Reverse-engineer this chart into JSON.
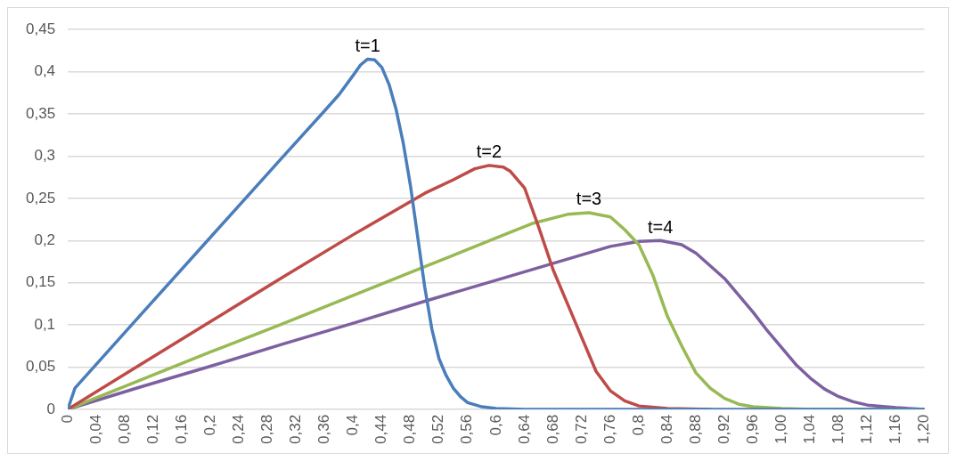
{
  "chart_data": {
    "type": "line",
    "series": [
      {
        "color": "#4a7ebb",
        "x": [
          0,
          0.01,
          0.1,
          0.2,
          0.3,
          0.36,
          0.38,
          0.4,
          0.41,
          0.42,
          0.43,
          0.44,
          0.45,
          0.46,
          0.47,
          0.48,
          0.49,
          0.5,
          0.51,
          0.52,
          0.53,
          0.54,
          0.55,
          0.56,
          0.58,
          0.6,
          0.64,
          0.8,
          1.0,
          1.2
        ],
        "values": [
          0,
          0.025,
          0.11,
          0.204,
          0.298,
          0.354,
          0.373,
          0.396,
          0.408,
          0.415,
          0.414,
          0.405,
          0.385,
          0.355,
          0.315,
          0.265,
          0.205,
          0.145,
          0.095,
          0.06,
          0.04,
          0.025,
          0.015,
          0.008,
          0.003,
          0.001,
          0,
          0,
          0,
          0
        ]
      },
      {
        "color": "#be4b48",
        "x": [
          0,
          0.1,
          0.2,
          0.3,
          0.4,
          0.5,
          0.54,
          0.57,
          0.59,
          0.61,
          0.62,
          0.64,
          0.66,
          0.68,
          0.7,
          0.72,
          0.74,
          0.76,
          0.78,
          0.8,
          0.84,
          0.9
        ],
        "values": [
          0,
          0.052,
          0.104,
          0.156,
          0.207,
          0.256,
          0.272,
          0.285,
          0.289,
          0.287,
          0.282,
          0.262,
          0.215,
          0.165,
          0.125,
          0.085,
          0.045,
          0.022,
          0.01,
          0.004,
          0.001,
          0
        ]
      },
      {
        "color": "#98b954",
        "x": [
          0,
          0.1,
          0.2,
          0.3,
          0.4,
          0.5,
          0.6,
          0.65,
          0.7,
          0.73,
          0.76,
          0.78,
          0.8,
          0.82,
          0.84,
          0.86,
          0.88,
          0.9,
          0.92,
          0.94,
          0.96,
          1.0,
          1.04,
          1.2
        ],
        "values": [
          0,
          0.034,
          0.068,
          0.101,
          0.135,
          0.169,
          0.203,
          0.22,
          0.231,
          0.233,
          0.228,
          0.213,
          0.195,
          0.158,
          0.11,
          0.075,
          0.043,
          0.025,
          0.013,
          0.006,
          0.003,
          0.001,
          0,
          0
        ]
      },
      {
        "color": "#7d60a0",
        "x": [
          0,
          0.1,
          0.2,
          0.3,
          0.4,
          0.5,
          0.6,
          0.7,
          0.76,
          0.8,
          0.83,
          0.86,
          0.88,
          0.9,
          0.92,
          0.94,
          0.96,
          0.98,
          1.0,
          1.02,
          1.04,
          1.06,
          1.08,
          1.1,
          1.12,
          1.16,
          1.2
        ],
        "values": [
          0,
          0.026,
          0.051,
          0.077,
          0.102,
          0.128,
          0.153,
          0.178,
          0.193,
          0.199,
          0.2,
          0.195,
          0.185,
          0.17,
          0.155,
          0.135,
          0.115,
          0.093,
          0.073,
          0.053,
          0.037,
          0.024,
          0.015,
          0.009,
          0.005,
          0.002,
          0
        ]
      }
    ],
    "annotations": [
      {
        "text": "t=1",
        "x": 0.42,
        "y": 0.415
      },
      {
        "text": "t=2",
        "x": 0.59,
        "y": 0.289
      },
      {
        "text": "t=3",
        "x": 0.73,
        "y": 0.233
      },
      {
        "text": "t=4",
        "x": 0.83,
        "y": 0.2
      }
    ],
    "xlim": [
      0,
      1.2
    ],
    "xticks": [
      0,
      {
        "value": 0.04,
        "label": "0,04"
      },
      {
        "value": 0.08,
        "label": "0,08"
      },
      {
        "value": 0.12,
        "label": "0,12"
      },
      {
        "value": 0.16,
        "label": "0,16"
      },
      {
        "value": 0.2,
        "label": "0,2"
      },
      {
        "value": 0.24,
        "label": "0,24"
      },
      {
        "value": 0.28,
        "label": "0,28"
      },
      {
        "value": 0.32,
        "label": "0,32"
      },
      {
        "value": 0.36,
        "label": "0,36"
      },
      {
        "value": 0.4,
        "label": "0,4"
      },
      {
        "value": 0.44,
        "label": "0,44"
      },
      {
        "value": 0.48,
        "label": "0,48"
      },
      {
        "value": 0.52,
        "label": "0,52"
      },
      {
        "value": 0.56,
        "label": "0,56"
      },
      {
        "value": 0.6,
        "label": "0,6"
      },
      {
        "value": 0.64,
        "label": "0,64"
      },
      {
        "value": 0.68,
        "label": "0,68"
      },
      {
        "value": 0.72,
        "label": "0,72"
      },
      {
        "value": 0.76,
        "label": "0,76"
      },
      {
        "value": 0.8,
        "label": "0,8"
      },
      {
        "value": 0.84,
        "label": "0,84"
      },
      {
        "value": 0.88,
        "label": "0,88"
      },
      {
        "value": 0.92,
        "label": "0,92"
      },
      {
        "value": 0.96,
        "label": "0,96"
      },
      {
        "value": 1.0,
        "label": "1,00"
      },
      {
        "value": 1.04,
        "label": "1,04"
      },
      {
        "value": 1.08,
        "label": "1,08"
      },
      {
        "value": 1.12,
        "label": "1,12"
      },
      {
        "value": 1.16,
        "label": "1,16"
      },
      {
        "value": 1.2,
        "label": "1,20"
      }
    ],
    "ylim": [
      0,
      0.45
    ],
    "yticks": [
      0,
      {
        "value": 0.05,
        "label": "0,05"
      },
      {
        "value": 0.1,
        "label": "0,1"
      },
      {
        "value": 0.15,
        "label": "0,15"
      },
      {
        "value": 0.2,
        "label": "0,2"
      },
      {
        "value": 0.25,
        "label": "0,25"
      },
      {
        "value": 0.3,
        "label": "0,3"
      },
      {
        "value": 0.35,
        "label": "0,35"
      },
      {
        "value": 0.4,
        "label": "0,4"
      },
      {
        "value": 0.45,
        "label": "0,45"
      }
    ],
    "grid": "y",
    "legend": false,
    "marker": "none",
    "line_style": "solid"
  }
}
